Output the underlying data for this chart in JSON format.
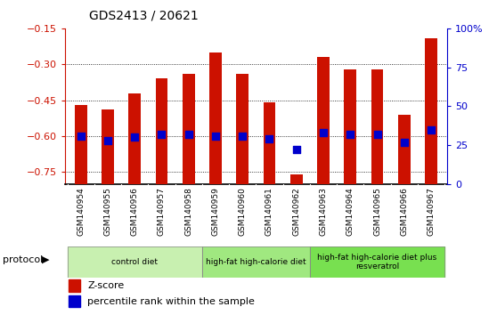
{
  "title": "GDS2413 / 20621",
  "samples": [
    "GSM140954",
    "GSM140955",
    "GSM140956",
    "GSM140957",
    "GSM140958",
    "GSM140959",
    "GSM140960",
    "GSM140961",
    "GSM140962",
    "GSM140963",
    "GSM140964",
    "GSM140965",
    "GSM140966",
    "GSM140967"
  ],
  "zscore": [
    -0.47,
    -0.49,
    -0.42,
    -0.36,
    -0.34,
    -0.25,
    -0.34,
    -0.46,
    -0.76,
    -0.27,
    -0.32,
    -0.32,
    -0.51,
    -0.19
  ],
  "percentile": [
    31,
    28,
    30,
    32,
    32,
    31,
    31,
    29,
    22,
    33,
    32,
    32,
    27,
    35
  ],
  "ylim_left": [
    -0.8,
    -0.15
  ],
  "ylim_right": [
    0,
    100
  ],
  "yticks_left": [
    -0.75,
    -0.6,
    -0.45,
    -0.3,
    -0.15
  ],
  "yticks_right": [
    0,
    25,
    50,
    75,
    100
  ],
  "ytick_labels_right": [
    "0",
    "25",
    "50",
    "75",
    "100%"
  ],
  "bar_color": "#cc1100",
  "dot_color": "#0000cc",
  "bg_color": "#ffffff",
  "protocol_groups": [
    {
      "label": "control diet",
      "start": 0,
      "end": 5,
      "color": "#c8f0b0"
    },
    {
      "label": "high-fat high-calorie diet",
      "start": 5,
      "end": 9,
      "color": "#a0e880"
    },
    {
      "label": "high-fat high-calorie diet plus\nresveratrol",
      "start": 9,
      "end": 14,
      "color": "#78e050"
    }
  ],
  "right_axis_color": "#0000cc",
  "tick_label_color_left": "#cc1100",
  "bar_width": 0.45,
  "dot_size": 40,
  "xtick_bg": "#c8c8c8"
}
